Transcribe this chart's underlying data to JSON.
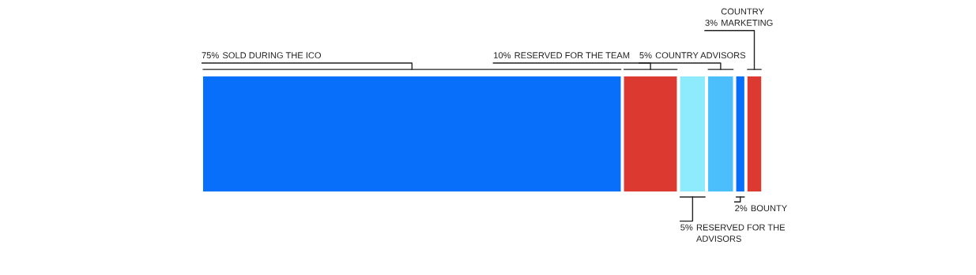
{
  "chart_data": {
    "type": "bar",
    "orientation": "horizontal",
    "stacked": true,
    "categories": [
      null
    ],
    "tick_labels": false,
    "data_labels": true,
    "series": [
      {
        "name": "SOLD DURING THE ICO",
        "color": "#076ff9",
        "values": [
          75
        ],
        "value_labels": [
          "75%"
        ]
      },
      {
        "name": "RESERVED FOR THE TEAM",
        "color": "#dc3a31",
        "values": [
          10
        ],
        "value_labels": [
          "10%"
        ]
      },
      {
        "name": "RESERVED FOR THE ADVISORS",
        "color": "#8eebfd",
        "values": [
          5
        ],
        "value_labels": [
          "5%"
        ]
      },
      {
        "name": "COUNTRY ADVISORS",
        "color": "#4bbefc",
        "values": [
          5
        ],
        "value_labels": [
          "5%"
        ]
      },
      {
        "name": "BOUNTY",
        "color": "#076ff9",
        "values": [
          2
        ],
        "value_labels": [
          "2%"
        ]
      },
      {
        "name": "COUNTRY MARKETING",
        "color": "#dc3a31",
        "values": [
          3
        ],
        "value_labels": [
          "3%"
        ]
      }
    ]
  }
}
